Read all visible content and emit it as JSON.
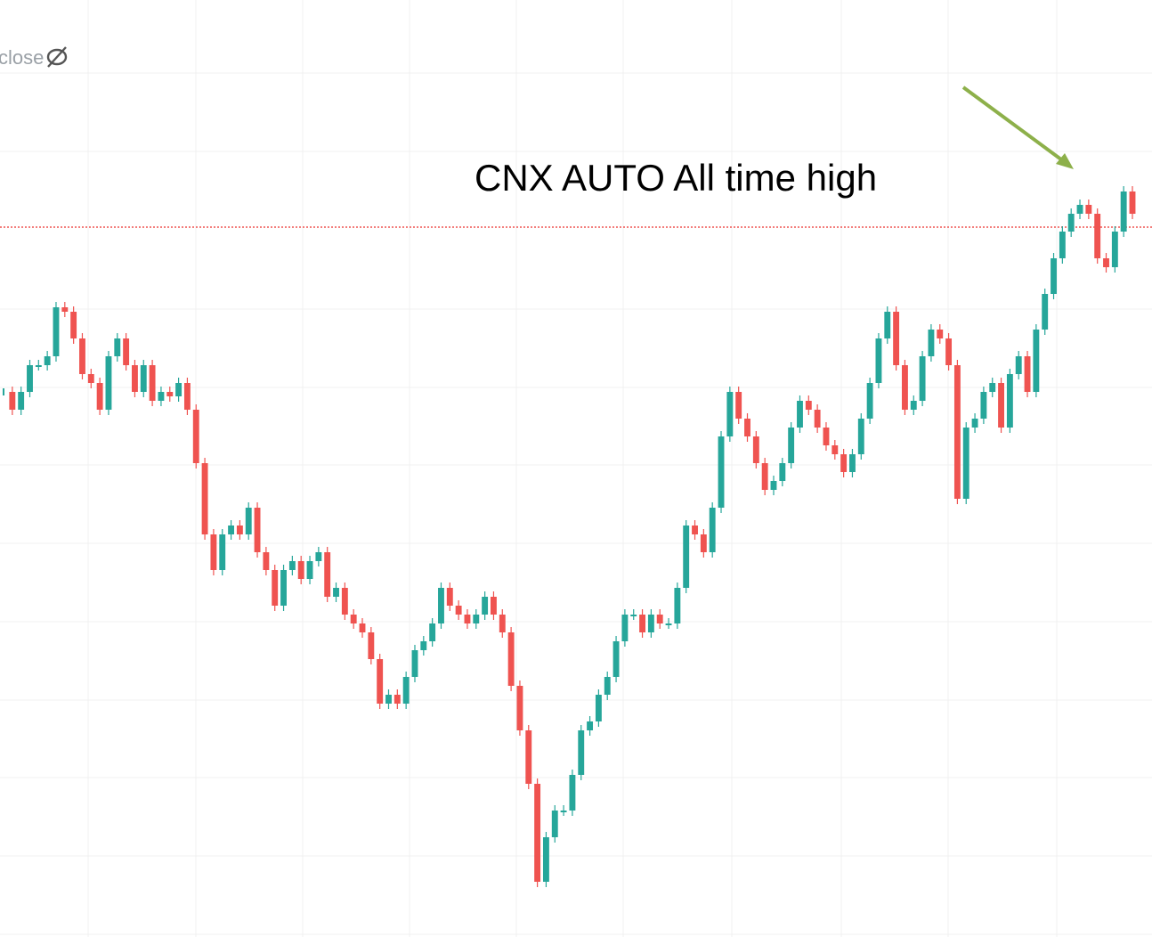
{
  "chart_data": {
    "type": "candlestick",
    "annotation": "CNX AUTO All time high",
    "series": [
      {
        "name": "close",
        "up_color": "#26a69a",
        "down_color": "#ef5350",
        "values": [
          612,
          592,
          612,
          642,
          642,
          652,
          707,
          702,
          672,
          632,
          622,
          592,
          652,
          672,
          642,
          612,
          642,
          602,
          612,
          607,
          622,
          592,
          532,
          452,
          412,
          452,
          462,
          452,
          482,
          432,
          412,
          372,
          412,
          422,
          402,
          422,
          432,
          382,
          392,
          362,
          352,
          342,
          312,
          262,
          272,
          262,
          292,
          322,
          332,
          352,
          392,
          372,
          362,
          352,
          362,
          382,
          362,
          342,
          282,
          232,
          172,
          62,
          112,
          142,
          142,
          182,
          232,
          242,
          272,
          292,
          332,
          362,
          362,
          342,
          362,
          352,
          352,
          392,
          462,
          452,
          432,
          482,
          562,
          612,
          582,
          562,
          532,
          502,
          512,
          532,
          572,
          602,
          592,
          572,
          552,
          542,
          522,
          542,
          582,
          622,
          672,
          702,
          642,
          592,
          602,
          652,
          682,
          672,
          642,
          492,
          572,
          582,
          612,
          622,
          572,
          632,
          652,
          612,
          682,
          722,
          762,
          792,
          812,
          822,
          812,
          762,
          752,
          792,
          837,
          812
        ]
      }
    ],
    "price_line": 797,
    "price_line_color": "#ef5350",
    "ylim": [
      0,
      1052
    ],
    "grid": true
  }
}
